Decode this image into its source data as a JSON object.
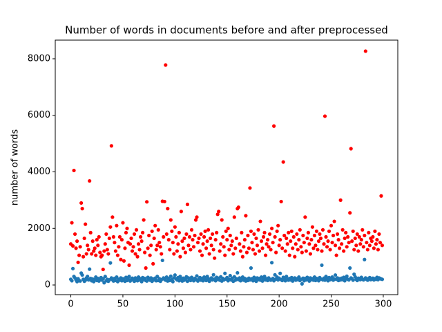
{
  "chart_data": {
    "type": "scatter",
    "title": "Number of words in documents before and after preprocessed",
    "ylabel": "number of words",
    "x": [
      0,
      1,
      2,
      3,
      4,
      5,
      6,
      7,
      8,
      9,
      10,
      11,
      12,
      13,
      14,
      15,
      16,
      17,
      18,
      19,
      20,
      21,
      22,
      23,
      24,
      25,
      26,
      27,
      28,
      29,
      30,
      31,
      32,
      33,
      34,
      35,
      36,
      37,
      38,
      39,
      40,
      41,
      42,
      43,
      44,
      45,
      46,
      47,
      48,
      49,
      50,
      51,
      52,
      53,
      54,
      55,
      56,
      57,
      58,
      59,
      60,
      61,
      62,
      63,
      64,
      65,
      66,
      67,
      68,
      69,
      70,
      71,
      72,
      73,
      74,
      75,
      76,
      77,
      78,
      79,
      80,
      81,
      82,
      83,
      84,
      85,
      86,
      87,
      88,
      89,
      90,
      91,
      92,
      93,
      94,
      95,
      96,
      97,
      98,
      99,
      100,
      101,
      102,
      103,
      104,
      105,
      106,
      107,
      108,
      109,
      110,
      111,
      112,
      113,
      114,
      115,
      116,
      117,
      118,
      119,
      120,
      121,
      122,
      123,
      124,
      125,
      126,
      127,
      128,
      129,
      130,
      131,
      132,
      133,
      134,
      135,
      136,
      137,
      138,
      139,
      140,
      141,
      142,
      143,
      144,
      145,
      146,
      147,
      148,
      149,
      150,
      151,
      152,
      153,
      154,
      155,
      156,
      157,
      158,
      159,
      160,
      161,
      162,
      163,
      164,
      165,
      166,
      167,
      168,
      169,
      170,
      171,
      172,
      173,
      174,
      175,
      176,
      177,
      178,
      179,
      180,
      181,
      182,
      183,
      184,
      185,
      186,
      187,
      188,
      189,
      190,
      191,
      192,
      193,
      194,
      195,
      196,
      197,
      198,
      199,
      200,
      201,
      202,
      203,
      204,
      205,
      206,
      207,
      208,
      209,
      210,
      211,
      212,
      213,
      214,
      215,
      216,
      217,
      218,
      219,
      220,
      221,
      222,
      223,
      224,
      225,
      226,
      227,
      228,
      229,
      230,
      231,
      232,
      233,
      234,
      235,
      236,
      237,
      238,
      239,
      240,
      241,
      242,
      243,
      244,
      245,
      246,
      247,
      248,
      249,
      250,
      251,
      252,
      253,
      254,
      255,
      256,
      257,
      258,
      259,
      260,
      261,
      262,
      263,
      264,
      265,
      266,
      267,
      268,
      269,
      270,
      271,
      272,
      273,
      274,
      275,
      276,
      277,
      278,
      279,
      280,
      281,
      282,
      283,
      284,
      285,
      286,
      287,
      288,
      289,
      290,
      291,
      292,
      293,
      294,
      295,
      296,
      297,
      298,
      299
    ],
    "series": [
      {
        "color": "#ff0000",
        "values": [
          1450,
          2200,
          1380,
          4050,
          1800,
          1300,
          1550,
          800,
          1050,
          1350,
          2900,
          2700,
          1000,
          1650,
          2150,
          1100,
          1400,
          1250,
          3680,
          1850,
          1100,
          1550,
          1200,
          1300,
          1050,
          1600,
          1400,
          1700,
          1150,
          1000,
          1050,
          550,
          1200,
          1450,
          1800,
          1250,
          1100,
          1650,
          2050,
          4920,
          2400,
          1700,
          1500,
          1200,
          2100,
          1050,
          1350,
          1700,
          900,
          1600,
          2200,
          850,
          1300,
          1850,
          2000,
          1500,
          700,
          1450,
          1650,
          1200,
          1350,
          1800,
          1100,
          1950,
          1000,
          1450,
          1250,
          1700,
          1550,
          1850,
          2300,
          1150,
          600,
          2940,
          1300,
          1750,
          1050,
          1400,
          1900,
          750,
          1650,
          2100,
          1250,
          1400,
          1950,
          1500,
          1350,
          1100,
          2960,
          1700,
          2950,
          7780,
          1800,
          2700,
          1600,
          1250,
          2300,
          1900,
          1500,
          1100,
          2050,
          1700,
          1200,
          1450,
          1850,
          1000,
          2600,
          1550,
          1300,
          1650,
          1150,
          1800,
          2850,
          1400,
          1700,
          1250,
          1950,
          1600,
          1350,
          1750,
          2300,
          2400,
          1500,
          1650,
          1200,
          1800,
          1050,
          1450,
          1700,
          1900,
          1300,
          1550,
          1950,
          1100,
          1650,
          1400,
          1800,
          1250,
          950,
          1600,
          1850,
          2500,
          2600,
          1200,
          1450,
          2300,
          1700,
          1350,
          1050,
          1900,
          1600,
          2000,
          1250,
          1750,
          1400,
          1550,
          1100,
          2400,
          1300,
          1650,
          2700,
          2750,
          1450,
          1200,
          1850,
          1000,
          1350,
          1600,
          2450,
          1150,
          1750,
          1300,
          3430,
          1900,
          1500,
          1250,
          1800,
          1100,
          1650,
          1400,
          1950,
          1200,
          2250,
          1550,
          1300,
          1700,
          1850,
          1050,
          1450,
          1600,
          1350,
          1800,
          1250,
          2000,
          1500,
          5620,
          1700,
          1150,
          1900,
          2100,
          1400,
          1600,
          2950,
          1300,
          4350,
          1750,
          1200,
          1650,
          1450,
          1850,
          1050,
          1550,
          1900,
          1300,
          1700,
          1000,
          1450,
          1800,
          1250,
          1600,
          1950,
          1350,
          1150,
          1750,
          1500,
          2400,
          1200,
          1650,
          1850,
          1450,
          1100,
          1600,
          2050,
          1300,
          1750,
          1400,
          1900,
          1250,
          1550,
          1800,
          1650,
          1200,
          1950,
          1450,
          5970,
          1700,
          1350,
          1550,
          1900,
          1250,
          2100,
          1500,
          1750,
          2250,
          1400,
          1050,
          1800,
          1600,
          1300,
          3000,
          1450,
          1950,
          1200,
          1650,
          1850,
          1350,
          1700,
          1500,
          2550,
          4820,
          1550,
          1900,
          1250,
          1650,
          1400,
          1800,
          1200,
          1700,
          1450,
          1600,
          1950,
          1350,
          1750,
          8270,
          1500,
          1250,
          1850,
          1400,
          1650,
          1550,
          1700,
          1300,
          1900,
          1450,
          1600,
          1250,
          1800,
          1500,
          3150,
          1400
        ]
      },
      {
        "color": "#1f77b4",
        "values": [
          200,
          150,
          580,
          300,
          250,
          180,
          120,
          220,
          160,
          140,
          420,
          350,
          200,
          130,
          170,
          250,
          300,
          180,
          560,
          230,
          150,
          210,
          120,
          190,
          280,
          160,
          230,
          140,
          200,
          260,
          170,
          220,
          80,
          300,
          150,
          200,
          130,
          180,
          780,
          250,
          190,
          140,
          230,
          160,
          280,
          120,
          200,
          170,
          250,
          150,
          220,
          180,
          130,
          270,
          160,
          210,
          300,
          140,
          190,
          240,
          170,
          130,
          250,
          200,
          150,
          280,
          180,
          220,
          120,
          260,
          190,
          230,
          160,
          140,
          270,
          200,
          170,
          250,
          130,
          210,
          180,
          240,
          150,
          300,
          160,
          220,
          130,
          190,
          870,
          250,
          200,
          170,
          280,
          140,
          230,
          160,
          310,
          190,
          120,
          250,
          350,
          220,
          180,
          260,
          150,
          300,
          200,
          140,
          240,
          170,
          210,
          290,
          130,
          250,
          180,
          160,
          270,
          200,
          150,
          230,
          190,
          320,
          140,
          210,
          260,
          170,
          230,
          150,
          280,
          200,
          160,
          300,
          220,
          130,
          190,
          250,
          180,
          360,
          210,
          150,
          270,
          200,
          240,
          170,
          290,
          140,
          230,
          180,
          410,
          210,
          260,
          150,
          200,
          330,
          180,
          240,
          130,
          290,
          170,
          220,
          430,
          190,
          250,
          150,
          210,
          280,
          170,
          230,
          140,
          200,
          160,
          240,
          180,
          600,
          220,
          150,
          270,
          200,
          130,
          250,
          190,
          230,
          170,
          280,
          140,
          210,
          300,
          180,
          220,
          160,
          250,
          200,
          170,
          790,
          230,
          150,
          360,
          210,
          280,
          180,
          240,
          410,
          190,
          160,
          270,
          220,
          150,
          300,
          200,
          170,
          230,
          180,
          260,
          140,
          210,
          250,
          170,
          220,
          190,
          280,
          160,
          200,
          40,
          240,
          150,
          230,
          180,
          270,
          210,
          140,
          250,
          190,
          220,
          170,
          280,
          160,
          230,
          200,
          150,
          260,
          210,
          700,
          180,
          240,
          170,
          300,
          220,
          150,
          260,
          190,
          230,
          280,
          170,
          210,
          350,
          200,
          250,
          160,
          220,
          180,
          240,
          190,
          270,
          150,
          230,
          310,
          200,
          180,
          600,
          250,
          220,
          170,
          380,
          290,
          200,
          160,
          240,
          230,
          190,
          270,
          210,
          180,
          900,
          250,
          200,
          170,
          230,
          260,
          190,
          210,
          240,
          180,
          220,
          200,
          270,
          190,
          250,
          230,
          210,
          200
        ]
      }
    ],
    "xlim": [
      -14.95,
      313.95
    ],
    "ylim": [
      -342,
      8660
    ],
    "xticks": [
      0,
      50,
      100,
      150,
      200,
      250,
      300
    ],
    "yticks": [
      0,
      2000,
      4000,
      6000,
      8000
    ]
  }
}
